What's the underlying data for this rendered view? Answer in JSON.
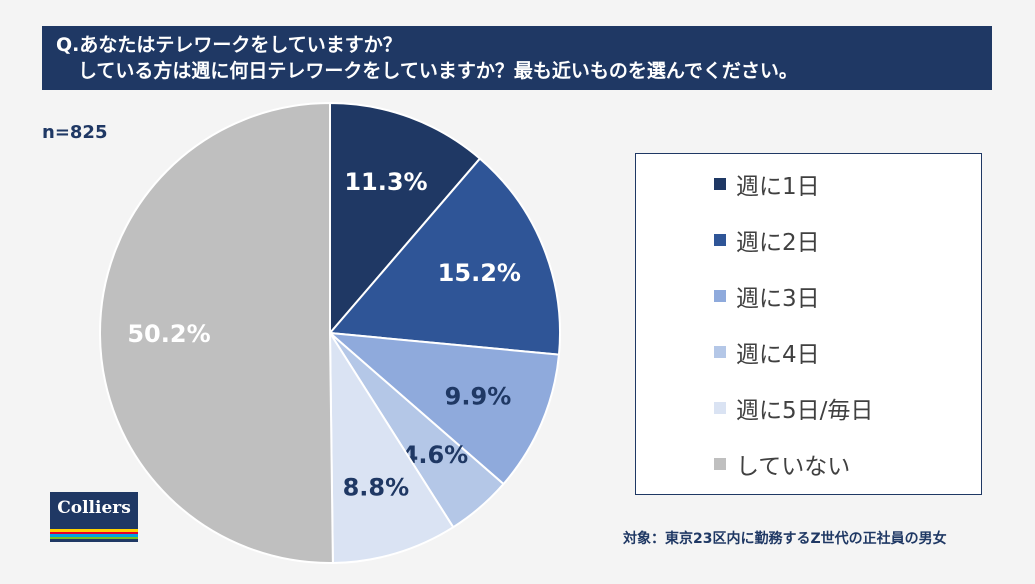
{
  "title": {
    "line1": "Q.あなたはテレワークをしていますか？",
    "line2": "している方は週に何日テレワークをしていますか？最も近いものを選んでください。"
  },
  "sample_size": "n=825",
  "footnote": "対象：東京23区内に勤務するZ世代の正社員の男女",
  "logo": {
    "text": "Colliers",
    "stripe_colors": [
      "#ffd200",
      "#e4002b",
      "#00a3e0",
      "#78be20"
    ]
  },
  "chart_data": {
    "type": "pie",
    "unit": "%",
    "start": "12 o'clock, clockwise",
    "slices": [
      {
        "label": "週に1日",
        "value": 11.3,
        "display": "11.3%",
        "color": "#1f3864",
        "label_color": "#ffffff"
      },
      {
        "label": "週に2日",
        "value": 15.2,
        "display": "15.2%",
        "color": "#2f5597",
        "label_color": "#ffffff"
      },
      {
        "label": "週に3日",
        "value": 9.9,
        "display": "9.9%",
        "color": "#8faadc",
        "label_color": "#1f3864"
      },
      {
        "label": "週に4日",
        "value": 4.6,
        "display": "4.6%",
        "color": "#b4c7e7",
        "label_color": "#1f3864"
      },
      {
        "label": "週に5日/毎日",
        "value": 8.8,
        "display": "8.8%",
        "color": "#dae3f3",
        "label_color": "#1f3864"
      },
      {
        "label": "していない",
        "value": 50.2,
        "display": "50.2%",
        "color": "#bfbfbf",
        "label_color": "#ffffff"
      }
    ]
  }
}
